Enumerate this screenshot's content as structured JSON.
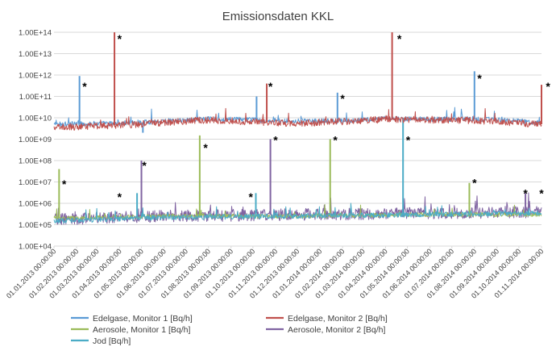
{
  "chart_data": {
    "type": "line",
    "title": "Emissionsdaten KKL",
    "y_scale": "log",
    "ylim": [
      10000,
      100000000000000
    ],
    "y_ticks": [
      "1.00E+04",
      "1.00E+05",
      "1.00E+06",
      "1.00E+07",
      "1.00E+08",
      "1.00E+09",
      "1.00E+10",
      "1.00E+11",
      "1.00E+12",
      "1.00E+13",
      "1.00E+14"
    ],
    "x_ticks": [
      "01.01.2013 00:00:00",
      "01.02.2013 00:00:00",
      "01.03.2013 00:00:00",
      "01.04.2013 00:00:00",
      "01.05.2013 00:00:00",
      "01.06.2013 00:00:00",
      "01.07.2013 00:00:00",
      "01.08.2013 00:00:00",
      "01.09.2013 00:00:00",
      "01.10.2013 00:00:00",
      "01.11.2013 00:00:00",
      "01.12.2013 00:00:00",
      "01.01.2014 00:00:00",
      "01.02.2014 00:00:00",
      "01.03.2014 00:00:00",
      "01.04.2014 00:00:00",
      "01.05.2014 00:00:00",
      "01.06.2014 00:00:00",
      "01.07.2014 00:00:00",
      "01.08.2014 00:00:00",
      "01.09.2014 00:00:00",
      "01.10.2014 00:00:00",
      "01.11.2014 00:00:00"
    ],
    "legend_position": "bottom",
    "grid": true,
    "series": [
      {
        "name": "Edelgase, Monitor 1 [Bq/h]",
        "color": "#5b9bd5",
        "baseline": [
          [
            "01.01.2013",
            5000000000
          ],
          [
            "01.04.2013",
            5500000000
          ],
          [
            "01.06.2013",
            7000000000
          ],
          [
            "01.08.2013",
            9000000000
          ],
          [
            "01.10.2013",
            8000000000
          ],
          [
            "01.12.2013",
            7000000000
          ],
          [
            "01.02.2014",
            7000000000
          ],
          [
            "01.04.2014",
            9000000000
          ],
          [
            "01.06.2014",
            8500000000
          ],
          [
            "01.08.2014",
            9000000000
          ],
          [
            "01.11.2014",
            6000000000
          ]
        ],
        "peaks": [
          [
            "05.02.2013",
            900000000000
          ],
          [
            "03.05.2013",
            2000000000
          ],
          [
            "06.10.2013",
            100000000000
          ],
          [
            "25.01.2014",
            150000000000
          ],
          [
            "01.08.2014",
            1500000000000
          ]
        ]
      },
      {
        "name": "Edelgase, Monitor 2 [Bq/h]",
        "color": "#c0504d",
        "baseline": [
          [
            "01.01.2013",
            3500000000
          ],
          [
            "01.04.2013",
            4500000000
          ],
          [
            "01.06.2013",
            6000000000
          ],
          [
            "01.08.2013",
            8000000000
          ],
          [
            "01.10.2013",
            6500000000
          ],
          [
            "01.12.2013",
            5500000000
          ],
          [
            "01.02.2014",
            6500000000
          ],
          [
            "01.04.2014",
            8500000000
          ],
          [
            "01.06.2014",
            8000000000
          ],
          [
            "01.08.2014",
            7500000000
          ],
          [
            "01.11.2014",
            5000000000
          ]
        ],
        "peaks": [
          [
            "25.03.2013",
            100000000000000
          ],
          [
            "20.10.2013",
            400000000000
          ],
          [
            "10.04.2014",
            100000000000000
          ],
          [
            "01.11.2014",
            350000000000
          ]
        ]
      },
      {
        "name": "Aerosole, Monitor 1 [Bq/h]",
        "color": "#9bbb59",
        "baseline": [
          [
            "01.01.2013",
            200000
          ],
          [
            "01.06.2013",
            250000
          ],
          [
            "01.12.2013",
            250000
          ],
          [
            "01.06.2014",
            300000
          ],
          [
            "01.11.2014",
            300000
          ]
        ],
        "peaks": [
          [
            "08.01.2013",
            40000000
          ],
          [
            "20.07.2013",
            1500000000
          ],
          [
            "15.01.2014",
            1000000000
          ],
          [
            "25.07.2014",
            9000000
          ]
        ]
      },
      {
        "name": "Aerosole, Monitor 2 [Bq/h]",
        "color": "#8064a2",
        "baseline": [
          [
            "01.01.2013",
            180000
          ],
          [
            "01.06.2013",
            250000
          ],
          [
            "01.12.2013",
            300000
          ],
          [
            "01.06.2014",
            350000
          ],
          [
            "01.11.2014",
            400000
          ]
        ],
        "peaks": [
          [
            "01.05.2013",
            100000000
          ],
          [
            "25.10.2013",
            1000000000
          ],
          [
            "10.10.2014",
            3000000
          ]
        ]
      },
      {
        "name": "Jod [Bq/h]",
        "color": "#4bacc6",
        "baseline": [
          [
            "01.01.2013",
            150000
          ],
          [
            "01.06.2013",
            220000
          ],
          [
            "01.12.2013",
            250000
          ],
          [
            "01.06.2014",
            300000
          ],
          [
            "01.11.2014",
            350000
          ]
        ],
        "peaks": [
          [
            "25.04.2013",
            3000000
          ],
          [
            "05.10.2013",
            3000000
          ],
          [
            "25.04.2014",
            10000000000
          ]
        ]
      }
    ],
    "annotations": [
      {
        "text": "*",
        "x": "12.02.2013",
        "y": 300000000000
      },
      {
        "text": "*",
        "x": "01.04.2013",
        "y": 50000000000000
      },
      {
        "text": "*",
        "x": "25.10.2013",
        "y": 300000000000
      },
      {
        "text": "*",
        "x": "01.02.2014",
        "y": 80000000000
      },
      {
        "text": "*",
        "x": "20.04.2014",
        "y": 50000000000000
      },
      {
        "text": "*",
        "x": "08.08.2014",
        "y": 700000000000
      },
      {
        "text": "*",
        "x": "10.11.2014",
        "y": 300000000000
      },
      {
        "text": "*",
        "x": "15.01.2013",
        "y": 8000000
      },
      {
        "text": "*",
        "x": "01.04.2013",
        "y": 2000000
      },
      {
        "text": "*",
        "x": "05.05.2013",
        "y": 60000000
      },
      {
        "text": "*",
        "x": "28.07.2013",
        "y": 400000000
      },
      {
        "text": "*",
        "x": "28.09.2013",
        "y": 2000000
      },
      {
        "text": "*",
        "x": "01.11.2013",
        "y": 900000000
      },
      {
        "text": "*",
        "x": "22.01.2014",
        "y": 900000000
      },
      {
        "text": "*",
        "x": "02.05.2014",
        "y": 900000000
      },
      {
        "text": "*",
        "x": "01.08.2014",
        "y": 9000000
      },
      {
        "text": "*",
        "x": "10.10.2014",
        "y": 3000000
      },
      {
        "text": "*",
        "x": "01.11.2014",
        "y": 3000000
      }
    ]
  }
}
